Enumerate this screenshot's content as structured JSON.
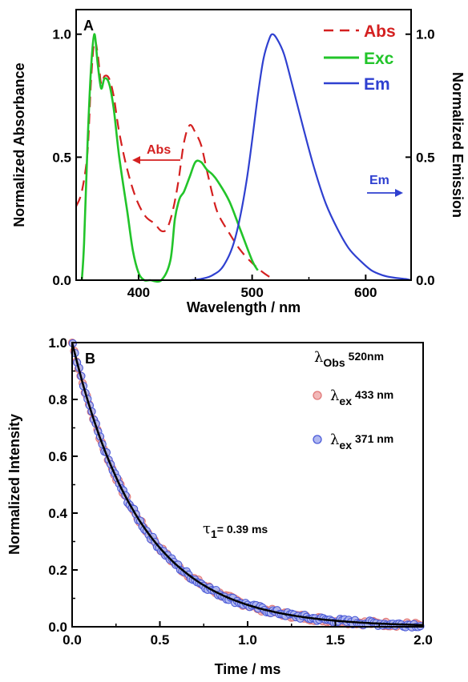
{
  "chart_data": [
    {
      "panel": "A",
      "type": "line",
      "xlabel": "Wavelength / nm",
      "ylabel_left": "Normalized Absorbance",
      "ylabel_right": "Normalized Emission",
      "xlim": [
        345,
        640
      ],
      "ylim": [
        0,
        1.1
      ],
      "xticks": [
        "400",
        "500",
        "600"
      ],
      "yticks": [
        "0.0",
        "0.5",
        "1.0"
      ],
      "yticks_right": [
        "0.0",
        "0.5",
        "1.0"
      ],
      "legend_position": "top-right",
      "colors": {
        "abs": "#d42020",
        "exc": "#22c42a",
        "em": "#2f40d0"
      },
      "series": [
        {
          "name": "Abs",
          "style": "dashed",
          "x": [
            345,
            350,
            355,
            358,
            361,
            364,
            367,
            370,
            374,
            378,
            383,
            390,
            398,
            406,
            414,
            420,
            425,
            430,
            435,
            440,
            445,
            450,
            455,
            460,
            465,
            470,
            480,
            490,
            500,
            510,
            520
          ],
          "y": [
            0.3,
            0.36,
            0.52,
            0.8,
            0.97,
            0.92,
            0.8,
            0.83,
            0.82,
            0.75,
            0.6,
            0.45,
            0.33,
            0.26,
            0.23,
            0.2,
            0.21,
            0.28,
            0.4,
            0.56,
            0.63,
            0.6,
            0.55,
            0.45,
            0.35,
            0.27,
            0.19,
            0.12,
            0.07,
            0.03,
            0.0
          ]
        },
        {
          "name": "Exc",
          "style": "solid",
          "x": [
            350,
            352,
            355,
            358,
            361,
            364,
            367,
            370,
            374,
            378,
            383,
            390,
            395,
            400,
            405,
            410,
            420,
            428,
            432,
            436,
            440,
            445,
            450,
            455,
            460,
            465,
            470,
            480,
            490,
            500,
            505
          ],
          "y": [
            0.0,
            0.15,
            0.55,
            0.85,
            1.0,
            0.88,
            0.78,
            0.82,
            0.8,
            0.7,
            0.5,
            0.28,
            0.12,
            0.03,
            0.0,
            0.0,
            0.0,
            0.08,
            0.25,
            0.33,
            0.36,
            0.42,
            0.48,
            0.48,
            0.45,
            0.43,
            0.4,
            0.32,
            0.2,
            0.08,
            0.04
          ]
        },
        {
          "name": "Em",
          "style": "solid",
          "x": [
            445,
            455,
            465,
            475,
            485,
            495,
            505,
            510,
            515,
            518,
            522,
            528,
            535,
            545,
            555,
            565,
            575,
            585,
            595,
            605,
            615,
            625,
            635,
            640
          ],
          "y": [
            0.0,
            0.005,
            0.02,
            0.06,
            0.17,
            0.4,
            0.75,
            0.9,
            0.98,
            1.0,
            0.98,
            0.92,
            0.8,
            0.62,
            0.45,
            0.31,
            0.21,
            0.13,
            0.08,
            0.04,
            0.02,
            0.01,
            0.005,
            0.0
          ]
        }
      ],
      "annotations": [
        {
          "text": "Abs",
          "x": 418,
          "y": 0.52,
          "arrow": "left",
          "color": "#d42020"
        },
        {
          "text": "Em",
          "x": 620,
          "y": 0.4,
          "arrow": "right",
          "color": "#2f40d0"
        }
      ]
    },
    {
      "panel": "B",
      "type": "scatter",
      "xlabel": "Time / ms",
      "ylabel": "Normalized Intensity",
      "xlim": [
        0,
        2.0
      ],
      "ylim": [
        0,
        1.0
      ],
      "xticks": [
        "0.0",
        "0.5",
        "1.0",
        "1.5",
        "2.0"
      ],
      "yticks": [
        "0.0",
        "0.2",
        "0.4",
        "0.6",
        "0.8",
        "1.0"
      ],
      "legend_position": "top-right",
      "legend_title": {
        "symbol": "λ",
        "sub": "Obs",
        "value": "520nm"
      },
      "colors": {
        "ex433": "#e07878",
        "ex371": "#4a5ad8",
        "fit": "#000000"
      },
      "series": [
        {
          "symbol": "λ",
          "sub": "ex",
          "value": "433 nm",
          "marker": "circle"
        },
        {
          "symbol": "λ",
          "sub": "ex",
          "value": "371 nm",
          "marker": "circle"
        },
        {
          "fit": "exponential",
          "tau_ms": 0.39
        }
      ],
      "annotation": {
        "symbol": "τ",
        "sub": "1",
        "text": "= 0.39 ms"
      }
    }
  ]
}
